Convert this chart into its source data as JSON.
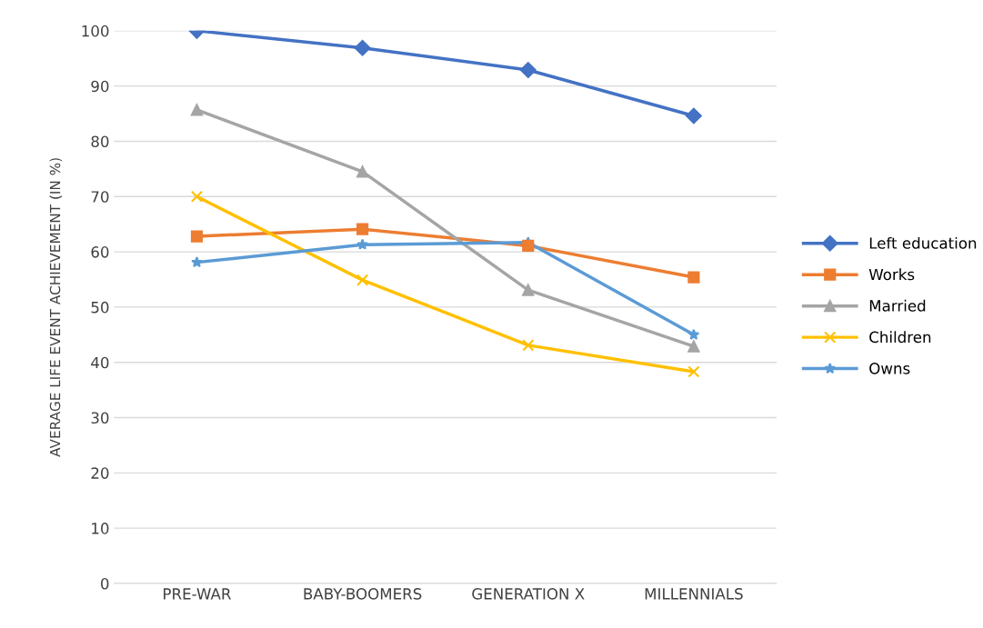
{
  "chart_data": {
    "type": "line",
    "ylabel": "AVERAGE LIFE EVENT ACHIEVEMENT (IN %)",
    "categories": [
      "PRE-WAR",
      "BABY-BOOMERS",
      "GENERATION X",
      "MILLENNIALS"
    ],
    "series": [
      {
        "name": "Left education",
        "color": "#4472c4",
        "marker": "diamond",
        "values": [
          100,
          96.9,
          92.9,
          84.6
        ]
      },
      {
        "name": "Works",
        "color": "#ed7d31",
        "marker": "square",
        "values": [
          62.8,
          64.1,
          61.1,
          55.4
        ]
      },
      {
        "name": "Married",
        "color": "#a5a5a5",
        "marker": "triangle",
        "values": [
          85.7,
          74.5,
          53.1,
          42.9
        ]
      },
      {
        "name": "Children",
        "color": "#ffc000",
        "marker": "cross",
        "values": [
          70,
          54.9,
          43.1,
          38.3
        ]
      },
      {
        "name": "Owns",
        "color": "#5b9bd5",
        "marker": "star",
        "values": [
          58.1,
          61.3,
          61.7,
          45
        ]
      }
    ],
    "ylim": [
      0,
      100
    ],
    "yticks": [
      0,
      10,
      20,
      30,
      40,
      50,
      60,
      70,
      80,
      90,
      100
    ],
    "grid": "y",
    "legend": "right",
    "line_style": "solid"
  }
}
